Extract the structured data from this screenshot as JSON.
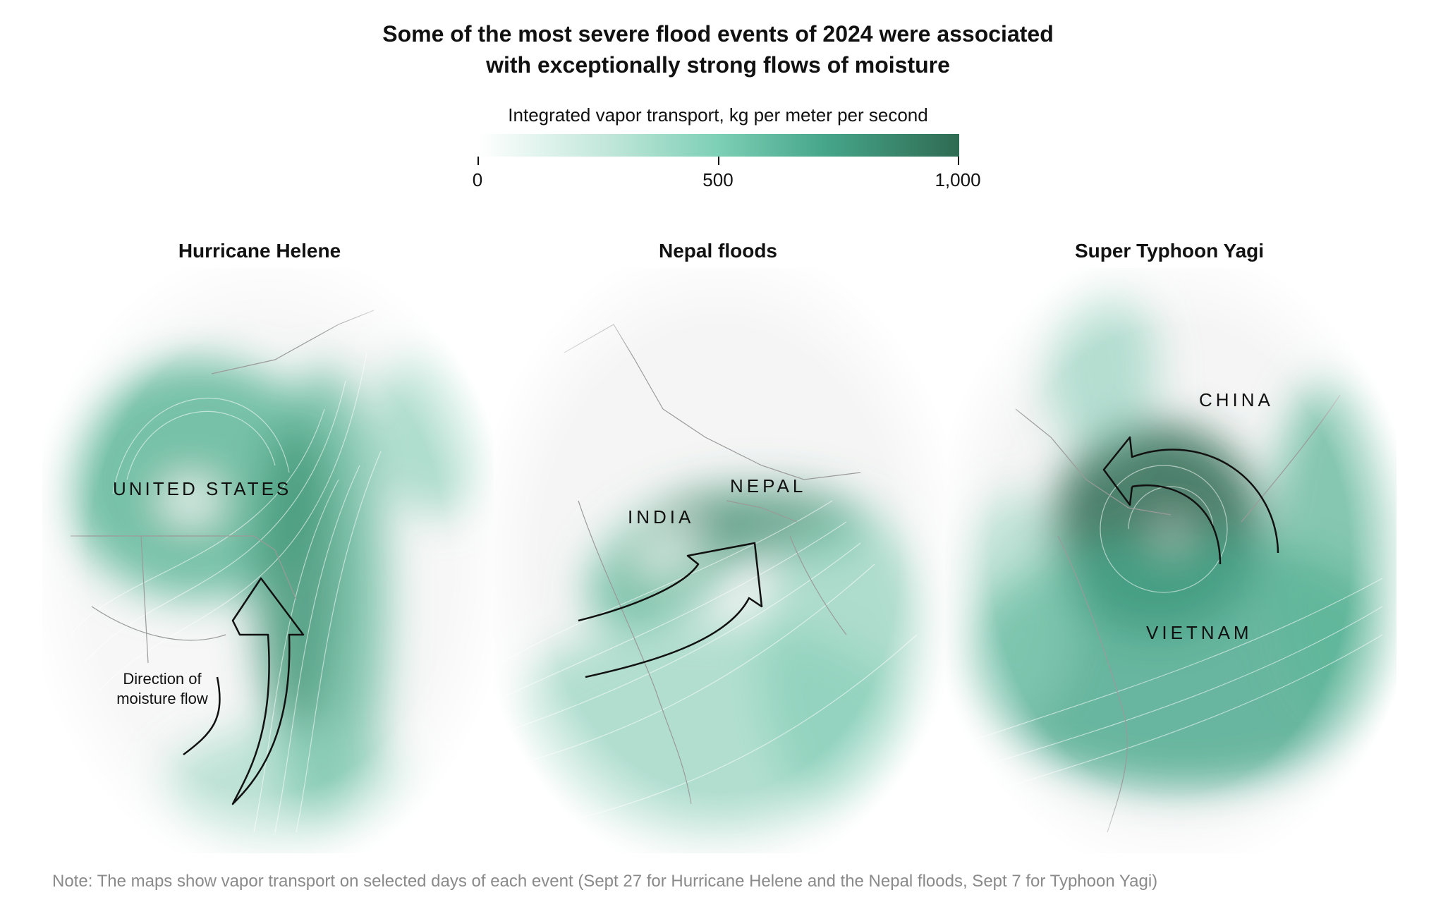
{
  "header": {
    "title_line1": "Some of the most severe flood events of 2024 were associated",
    "title_line2": "with exceptionally strong flows of moisture"
  },
  "legend": {
    "title": "Integrated vapor transport, kg per meter per second",
    "ticks": [
      "0",
      "500",
      "1,000"
    ],
    "range": [
      0,
      1000
    ],
    "colors": [
      "#ffffff",
      "#bfe6d9",
      "#7dcfb5",
      "#46a68a",
      "#2f6b53"
    ]
  },
  "panels": [
    {
      "title": "Hurricane Helene",
      "labels": [
        "UNITED STATES"
      ],
      "annotation_line1": "Direction of",
      "annotation_line2": "moisture flow"
    },
    {
      "title": "Nepal floods",
      "labels": [
        "INDIA",
        "NEPAL"
      ]
    },
    {
      "title": "Super Typhoon Yagi",
      "labels": [
        "CHINA",
        "VIETNAM"
      ]
    }
  ],
  "note": "Note: The maps show vapor transport on selected days of each event (Sept 27 for Hurricane Helene and the Nepal floods, Sept 7 for Typhoon Yagi)"
}
